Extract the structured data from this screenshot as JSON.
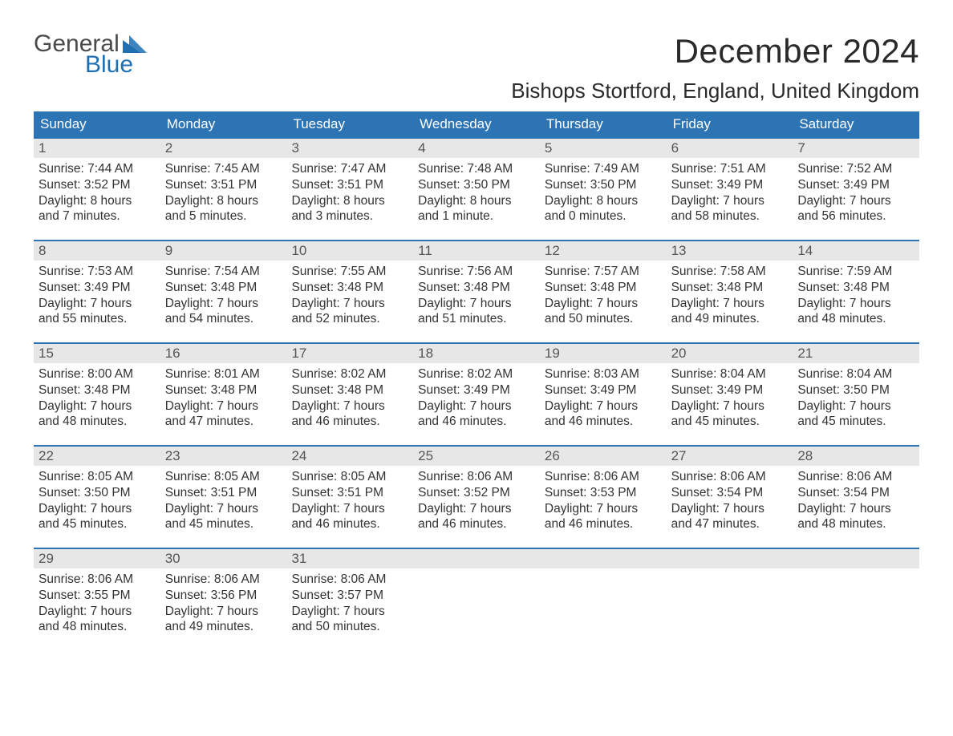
{
  "logo": {
    "general": "General",
    "blue": "Blue"
  },
  "title": "December 2024",
  "location": "Bishops Stortford, England, United Kingdom",
  "colors": {
    "header_bg": "#2d74b5",
    "header_text": "#ffffff",
    "daynum_bg": "#e7e7e7",
    "week_border": "#2d74b5",
    "logo_blue": "#1f6fb2",
    "text": "#333333"
  },
  "weekdays": [
    "Sunday",
    "Monday",
    "Tuesday",
    "Wednesday",
    "Thursday",
    "Friday",
    "Saturday"
  ],
  "weeks": [
    [
      {
        "n": "1",
        "sunrise": "7:44 AM",
        "sunset": "3:52 PM",
        "daylight1": "Daylight: 8 hours",
        "daylight2": "and 7 minutes."
      },
      {
        "n": "2",
        "sunrise": "7:45 AM",
        "sunset": "3:51 PM",
        "daylight1": "Daylight: 8 hours",
        "daylight2": "and 5 minutes."
      },
      {
        "n": "3",
        "sunrise": "7:47 AM",
        "sunset": "3:51 PM",
        "daylight1": "Daylight: 8 hours",
        "daylight2": "and 3 minutes."
      },
      {
        "n": "4",
        "sunrise": "7:48 AM",
        "sunset": "3:50 PM",
        "daylight1": "Daylight: 8 hours",
        "daylight2": "and 1 minute."
      },
      {
        "n": "5",
        "sunrise": "7:49 AM",
        "sunset": "3:50 PM",
        "daylight1": "Daylight: 8 hours",
        "daylight2": "and 0 minutes."
      },
      {
        "n": "6",
        "sunrise": "7:51 AM",
        "sunset": "3:49 PM",
        "daylight1": "Daylight: 7 hours",
        "daylight2": "and 58 minutes."
      },
      {
        "n": "7",
        "sunrise": "7:52 AM",
        "sunset": "3:49 PM",
        "daylight1": "Daylight: 7 hours",
        "daylight2": "and 56 minutes."
      }
    ],
    [
      {
        "n": "8",
        "sunrise": "7:53 AM",
        "sunset": "3:49 PM",
        "daylight1": "Daylight: 7 hours",
        "daylight2": "and 55 minutes."
      },
      {
        "n": "9",
        "sunrise": "7:54 AM",
        "sunset": "3:48 PM",
        "daylight1": "Daylight: 7 hours",
        "daylight2": "and 54 minutes."
      },
      {
        "n": "10",
        "sunrise": "7:55 AM",
        "sunset": "3:48 PM",
        "daylight1": "Daylight: 7 hours",
        "daylight2": "and 52 minutes."
      },
      {
        "n": "11",
        "sunrise": "7:56 AM",
        "sunset": "3:48 PM",
        "daylight1": "Daylight: 7 hours",
        "daylight2": "and 51 minutes."
      },
      {
        "n": "12",
        "sunrise": "7:57 AM",
        "sunset": "3:48 PM",
        "daylight1": "Daylight: 7 hours",
        "daylight2": "and 50 minutes."
      },
      {
        "n": "13",
        "sunrise": "7:58 AM",
        "sunset": "3:48 PM",
        "daylight1": "Daylight: 7 hours",
        "daylight2": "and 49 minutes."
      },
      {
        "n": "14",
        "sunrise": "7:59 AM",
        "sunset": "3:48 PM",
        "daylight1": "Daylight: 7 hours",
        "daylight2": "and 48 minutes."
      }
    ],
    [
      {
        "n": "15",
        "sunrise": "8:00 AM",
        "sunset": "3:48 PM",
        "daylight1": "Daylight: 7 hours",
        "daylight2": "and 48 minutes."
      },
      {
        "n": "16",
        "sunrise": "8:01 AM",
        "sunset": "3:48 PM",
        "daylight1": "Daylight: 7 hours",
        "daylight2": "and 47 minutes."
      },
      {
        "n": "17",
        "sunrise": "8:02 AM",
        "sunset": "3:48 PM",
        "daylight1": "Daylight: 7 hours",
        "daylight2": "and 46 minutes."
      },
      {
        "n": "18",
        "sunrise": "8:02 AM",
        "sunset": "3:49 PM",
        "daylight1": "Daylight: 7 hours",
        "daylight2": "and 46 minutes."
      },
      {
        "n": "19",
        "sunrise": "8:03 AM",
        "sunset": "3:49 PM",
        "daylight1": "Daylight: 7 hours",
        "daylight2": "and 46 minutes."
      },
      {
        "n": "20",
        "sunrise": "8:04 AM",
        "sunset": "3:49 PM",
        "daylight1": "Daylight: 7 hours",
        "daylight2": "and 45 minutes."
      },
      {
        "n": "21",
        "sunrise": "8:04 AM",
        "sunset": "3:50 PM",
        "daylight1": "Daylight: 7 hours",
        "daylight2": "and 45 minutes."
      }
    ],
    [
      {
        "n": "22",
        "sunrise": "8:05 AM",
        "sunset": "3:50 PM",
        "daylight1": "Daylight: 7 hours",
        "daylight2": "and 45 minutes."
      },
      {
        "n": "23",
        "sunrise": "8:05 AM",
        "sunset": "3:51 PM",
        "daylight1": "Daylight: 7 hours",
        "daylight2": "and 45 minutes."
      },
      {
        "n": "24",
        "sunrise": "8:05 AM",
        "sunset": "3:51 PM",
        "daylight1": "Daylight: 7 hours",
        "daylight2": "and 46 minutes."
      },
      {
        "n": "25",
        "sunrise": "8:06 AM",
        "sunset": "3:52 PM",
        "daylight1": "Daylight: 7 hours",
        "daylight2": "and 46 minutes."
      },
      {
        "n": "26",
        "sunrise": "8:06 AM",
        "sunset": "3:53 PM",
        "daylight1": "Daylight: 7 hours",
        "daylight2": "and 46 minutes."
      },
      {
        "n": "27",
        "sunrise": "8:06 AM",
        "sunset": "3:54 PM",
        "daylight1": "Daylight: 7 hours",
        "daylight2": "and 47 minutes."
      },
      {
        "n": "28",
        "sunrise": "8:06 AM",
        "sunset": "3:54 PM",
        "daylight1": "Daylight: 7 hours",
        "daylight2": "and 48 minutes."
      }
    ],
    [
      {
        "n": "29",
        "sunrise": "8:06 AM",
        "sunset": "3:55 PM",
        "daylight1": "Daylight: 7 hours",
        "daylight2": "and 48 minutes."
      },
      {
        "n": "30",
        "sunrise": "8:06 AM",
        "sunset": "3:56 PM",
        "daylight1": "Daylight: 7 hours",
        "daylight2": "and 49 minutes."
      },
      {
        "n": "31",
        "sunrise": "8:06 AM",
        "sunset": "3:57 PM",
        "daylight1": "Daylight: 7 hours",
        "daylight2": "and 50 minutes."
      },
      null,
      null,
      null,
      null
    ]
  ],
  "labels": {
    "sunrise": "Sunrise: ",
    "sunset": "Sunset: "
  }
}
